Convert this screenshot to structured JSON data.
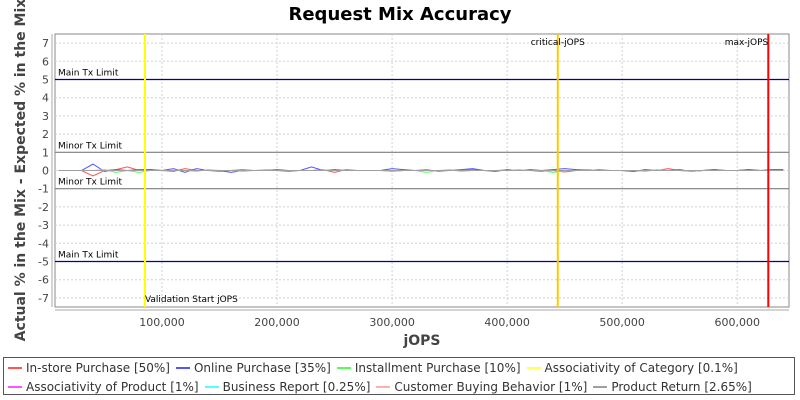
{
  "chart_data": {
    "type": "line",
    "title": "Request Mix Accuracy",
    "xlabel": "jOPS",
    "ylabel": "Actual % in the Mix - Expected % in the Mix",
    "xlim": [
      7000,
      645000
    ],
    "ylim": [
      -7.5,
      7.5
    ],
    "xticks": [
      100000,
      200000,
      300000,
      400000,
      500000,
      600000
    ],
    "xtick_labels": [
      "100,000",
      "200,000",
      "300,000",
      "400,000",
      "500,000",
      "600,000"
    ],
    "yticks": [
      -7,
      -6,
      -5,
      -4,
      -3,
      -2,
      -1,
      0,
      1,
      2,
      3,
      4,
      5,
      6,
      7
    ],
    "grid": true,
    "legend_placement": "bottom",
    "horizontal_markers": [
      {
        "label": "Main Tx Limit",
        "y": 5,
        "color": "#0000a0",
        "label_pos": "above"
      },
      {
        "label": "Minor Tx Limit",
        "y": 1,
        "color": "#808080",
        "label_pos": "above"
      },
      {
        "label": "Minor Tx Limit",
        "y": -1,
        "color": "#808080",
        "label_pos": "above"
      },
      {
        "label": "Main Tx Limit",
        "y": -5,
        "color": "#0000a0",
        "label_pos": "above"
      }
    ],
    "vertical_markers": [
      {
        "label": "Validation Start jOPS",
        "x": 85200,
        "color": "#ffff00",
        "label_pos": "bottom-right"
      },
      {
        "label": "critical-jOPS",
        "x": 444000,
        "color": "#ffc800",
        "label_pos": "top-center"
      },
      {
        "label": "max-jOPS",
        "x": 627000,
        "color": "#ff0000",
        "label_pos": "top-left"
      }
    ],
    "x": [
      10000,
      20000,
      30000,
      40000,
      50000,
      60000,
      70000,
      80000,
      90000,
      100000,
      110000,
      120000,
      130000,
      140000,
      150000,
      160000,
      170000,
      180000,
      190000,
      200000,
      210000,
      220000,
      230000,
      240000,
      250000,
      260000,
      270000,
      280000,
      290000,
      300000,
      310000,
      320000,
      330000,
      340000,
      350000,
      360000,
      370000,
      380000,
      390000,
      400000,
      410000,
      420000,
      430000,
      440000,
      450000,
      460000,
      470000,
      480000,
      490000,
      500000,
      510000,
      520000,
      530000,
      540000,
      550000,
      560000,
      570000,
      580000,
      590000,
      600000,
      610000,
      620000,
      630000,
      640000
    ],
    "series": [
      {
        "name": "In-store Purchase [50%]",
        "color": "#ff5555",
        "values": [
          0,
          0,
          0,
          -0.3,
          0,
          0.05,
          0.2,
          0,
          0.05,
          0,
          -0.05,
          0.1,
          0,
          0,
          -0.05,
          0,
          0.05,
          0,
          0.03,
          0,
          -0.05,
          0,
          0,
          0.05,
          -0.1,
          0.05,
          0,
          0,
          0,
          -0.05,
          0,
          0,
          0.05,
          -0.05,
          0,
          0,
          0.05,
          0,
          0,
          0.03,
          0,
          0,
          -0.05,
          0,
          -0.08,
          0,
          0,
          0.05,
          0,
          0,
          -0.05,
          0,
          0,
          0.1,
          0,
          -0.05,
          0,
          0.05,
          0,
          0,
          0.05,
          0,
          0,
          0.02
        ]
      },
      {
        "name": "Online Purchase [35%]",
        "color": "#5555ff",
        "values": [
          0,
          0,
          0,
          0.35,
          -0.05,
          0.05,
          0,
          0.05,
          0.05,
          0,
          0.1,
          -0.1,
          0.1,
          0,
          0,
          -0.1,
          0,
          0,
          0,
          0.05,
          0,
          0,
          0.2,
          0,
          0.05,
          0,
          0,
          0,
          0,
          0.1,
          0.05,
          0,
          0,
          0,
          0,
          0.05,
          0.1,
          0,
          -0.05,
          0.05,
          0,
          0.05,
          0,
          0.05,
          0.1,
          0.05,
          0.05,
          0,
          0,
          0,
          -0.05,
          0.05,
          0,
          0,
          0.05,
          -0.05,
          0,
          0.05,
          0,
          0,
          0.05,
          0,
          0.05,
          0.05
        ]
      },
      {
        "name": "Installment Purchase [10%]",
        "color": "#55ff55",
        "values": [
          0,
          0,
          0,
          0,
          0.05,
          -0.1,
          0,
          -0.1,
          0,
          0,
          0,
          0,
          -0.05,
          0.05,
          0,
          0,
          -0.05,
          0,
          0,
          0,
          0,
          0,
          0,
          0.02,
          0,
          0,
          0,
          0,
          0,
          -0.05,
          0,
          0,
          -0.1,
          0,
          0.05,
          -0.05,
          0,
          0,
          0,
          0,
          0.05,
          0,
          0,
          -0.1,
          0,
          0,
          0.05,
          0,
          0,
          0,
          0,
          -0.05,
          0.05,
          0,
          0,
          -0.05,
          0,
          0,
          0,
          0,
          0,
          0,
          0,
          0
        ]
      },
      {
        "name": "Associativity of Category [0.1%]",
        "color": "#ffff55",
        "values": [
          0,
          0,
          0,
          0,
          0,
          0,
          0,
          0,
          0,
          0,
          0,
          0,
          0,
          0,
          0,
          0,
          0,
          0,
          0,
          0,
          0,
          0,
          0,
          0,
          0,
          0,
          0,
          0,
          0,
          0,
          0,
          0,
          0,
          0,
          0,
          0,
          0,
          0,
          0,
          0,
          0,
          0,
          0,
          0,
          0,
          0,
          0,
          0,
          0,
          0,
          0,
          0,
          0,
          0,
          0,
          0,
          0,
          0,
          0,
          0,
          0,
          0,
          0,
          0
        ]
      },
      {
        "name": "Associativity of Product [1%]",
        "color": "#ff55ff",
        "values": [
          0,
          0,
          0,
          0,
          0,
          0,
          0,
          0,
          0,
          0,
          0,
          0,
          0,
          0,
          0,
          0,
          0,
          0,
          0,
          0,
          0,
          0,
          0,
          0,
          0,
          0,
          0,
          0,
          0,
          0,
          0,
          0,
          0,
          0,
          0,
          0,
          0,
          0,
          0,
          0,
          0,
          0,
          0,
          0,
          0,
          0,
          0,
          0,
          0,
          0,
          0,
          0,
          0,
          0,
          0,
          0,
          0,
          0,
          0,
          0,
          0,
          0,
          0,
          0
        ]
      },
      {
        "name": "Business Report [0.25%]",
        "color": "#55ffff",
        "values": [
          0,
          0,
          0,
          0,
          0,
          0,
          0,
          0,
          0,
          0,
          0,
          0,
          0,
          0,
          0,
          0,
          0,
          0,
          0,
          0,
          0,
          0,
          0,
          0,
          0,
          0,
          0,
          0,
          0,
          0,
          0,
          0,
          0,
          0,
          0,
          0,
          0,
          0,
          0,
          0,
          0,
          0,
          0,
          0,
          0,
          0,
          0,
          0,
          0,
          0,
          0,
          0,
          0,
          0,
          0,
          0,
          0,
          0,
          0,
          0,
          0,
          0,
          0,
          0
        ]
      },
      {
        "name": "Customer Buying Behavior [1%]",
        "color": "#ffafaf",
        "values": [
          0,
          0,
          0,
          0,
          0,
          0,
          0,
          0,
          0,
          0,
          0,
          0,
          0,
          0,
          0,
          0,
          0,
          0,
          0,
          0,
          0,
          0,
          0,
          0,
          0,
          0,
          0,
          0,
          0,
          0,
          0,
          0,
          0,
          0,
          0,
          0,
          0,
          0,
          0,
          0,
          0,
          0,
          0,
          0,
          0,
          0,
          0,
          0,
          0,
          0,
          0,
          0,
          0,
          0,
          0,
          0,
          0,
          0,
          0,
          0,
          0,
          0,
          0,
          0
        ]
      },
      {
        "name": "Product Return [2.65%]",
        "color": "#a0a0a0",
        "values": [
          0,
          0,
          0,
          0,
          0,
          0,
          0,
          0,
          0,
          0,
          0,
          0,
          0,
          0,
          0,
          0,
          0,
          0,
          0,
          0,
          0,
          0,
          0,
          0,
          0,
          0,
          0,
          0,
          0,
          0,
          0,
          0,
          0,
          0,
          0,
          0,
          0,
          0,
          0,
          0,
          0,
          0,
          0,
          0,
          0,
          0,
          0,
          0,
          0,
          0,
          0,
          0,
          0,
          0,
          0,
          0,
          0,
          0,
          0,
          0,
          0,
          0,
          0,
          0
        ]
      }
    ]
  }
}
